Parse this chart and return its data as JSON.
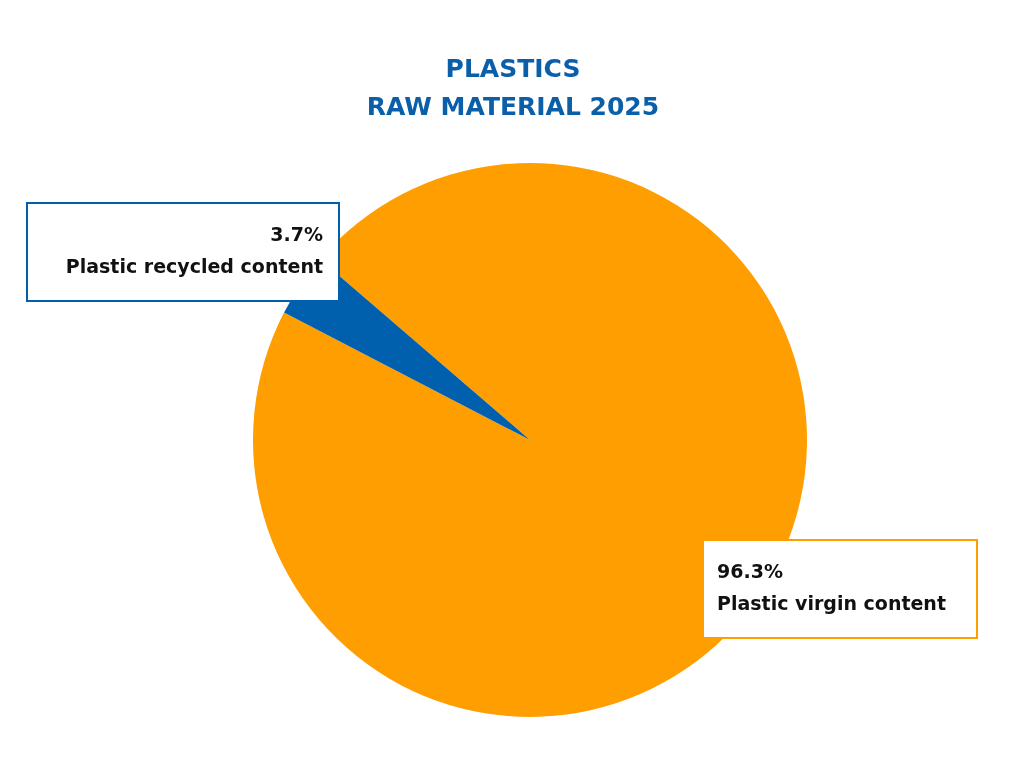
{
  "chart_data": {
    "type": "pie",
    "title": "PLASTICS\nRAW MATERIAL 2025",
    "categories": [
      "Plastic virgin content",
      "Plastic recycled content"
    ],
    "values": [
      96.3,
      3.7
    ],
    "colors": [
      "#ff9e00",
      "#0060ae"
    ],
    "value_labels": [
      "96.3%",
      "3.7%"
    ],
    "legend": false
  }
}
